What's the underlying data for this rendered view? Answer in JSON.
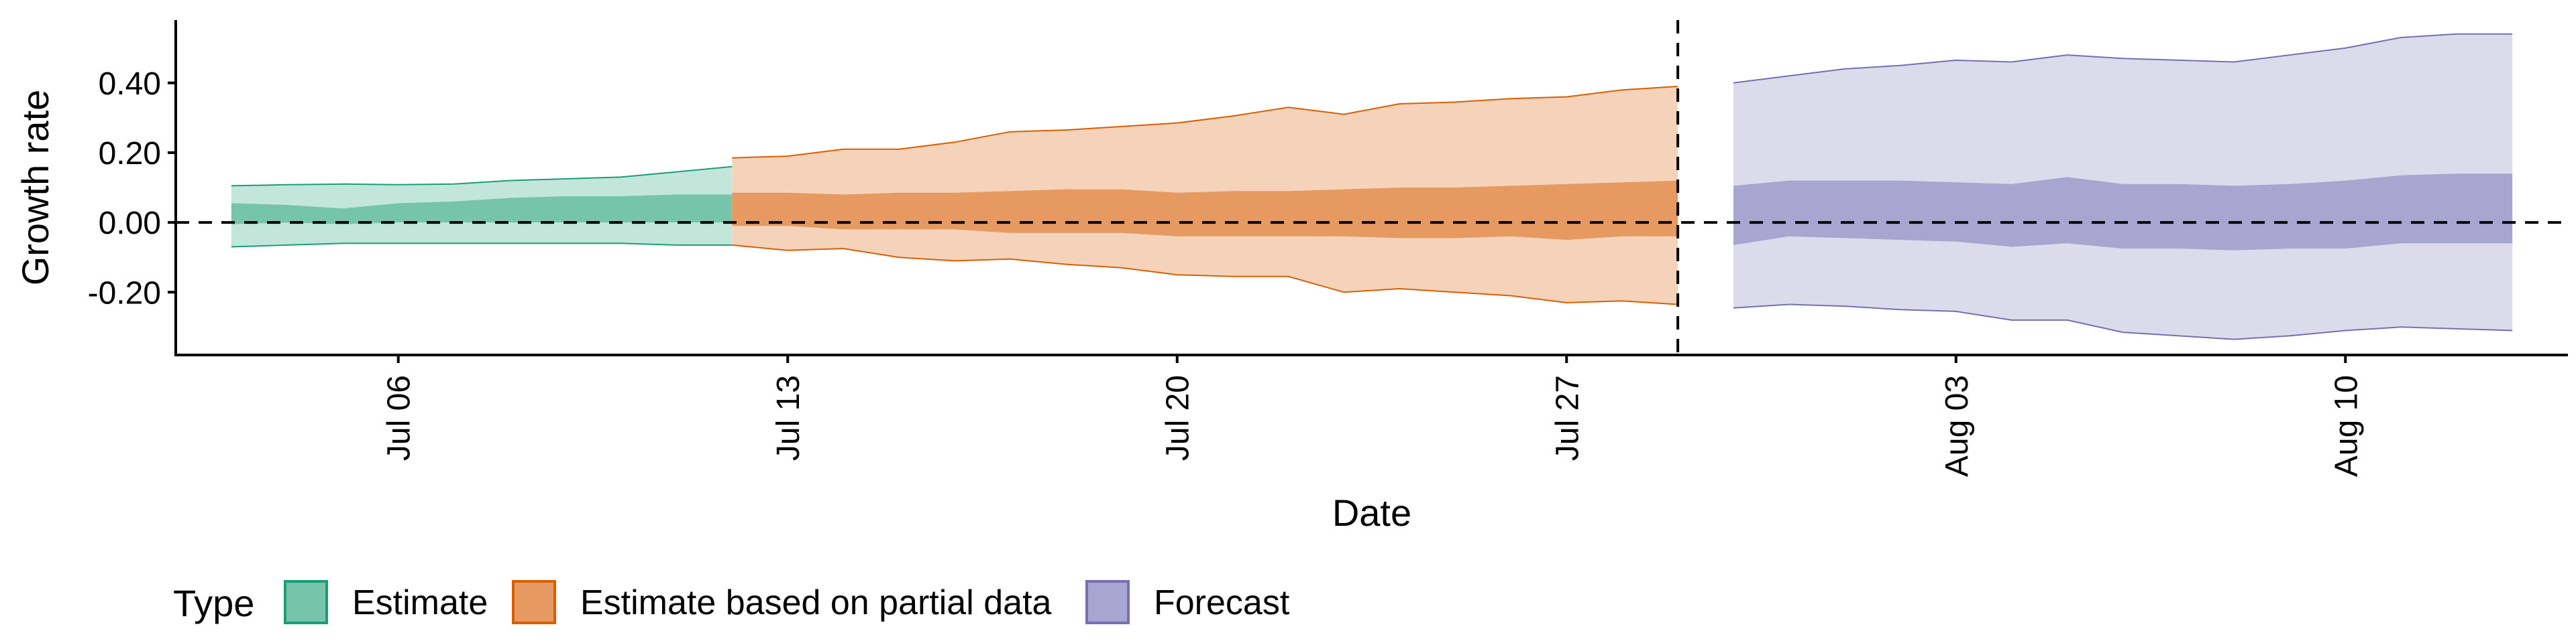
{
  "chart_data": {
    "type": "area",
    "xlabel": "Date",
    "ylabel": "Growth rate",
    "x_range": [
      "2020-07-02",
      "2020-08-14"
    ],
    "ylim": [
      -0.38,
      0.58
    ],
    "y_ticks": [
      {
        "value": -0.2,
        "label": "-0.20"
      },
      {
        "value": 0.0,
        "label": "0.00"
      },
      {
        "value": 0.2,
        "label": "0.20"
      },
      {
        "value": 0.4,
        "label": "0.40"
      }
    ],
    "x_ticks": [
      {
        "value": "2020-07-06",
        "label": "Jul 06"
      },
      {
        "value": "2020-07-13",
        "label": "Jul 13"
      },
      {
        "value": "2020-07-20",
        "label": "Jul 20"
      },
      {
        "value": "2020-07-27",
        "label": "Jul 27"
      },
      {
        "value": "2020-08-03",
        "label": "Aug 03"
      },
      {
        "value": "2020-08-10",
        "label": "Aug 10"
      }
    ],
    "hline_y": 0.0,
    "vline_x": "2020-07-29",
    "grid": false,
    "legend": {
      "title": "Type",
      "position": "bottom-left"
    },
    "series": [
      {
        "name": "Estimate",
        "color": "#1b9e77",
        "light_fill": "#c3e6da",
        "dark_fill": "#76c4a9",
        "x": [
          "2020-07-03",
          "2020-07-04",
          "2020-07-05",
          "2020-07-06",
          "2020-07-07",
          "2020-07-08",
          "2020-07-09",
          "2020-07-10",
          "2020-07-11",
          "2020-07-12"
        ],
        "lower90": [
          -0.07,
          -0.065,
          -0.06,
          -0.06,
          -0.06,
          -0.06,
          -0.06,
          -0.06,
          -0.065,
          -0.065
        ],
        "upper90": [
          0.105,
          0.108,
          0.11,
          0.108,
          0.11,
          0.12,
          0.125,
          0.13,
          0.145,
          0.16
        ],
        "lower50": [
          -0.005,
          0.0,
          -0.005,
          0.0,
          0.0,
          0.0,
          0.0,
          0.0,
          0.0,
          0.0
        ],
        "upper50": [
          0.055,
          0.05,
          0.04,
          0.055,
          0.06,
          0.07,
          0.075,
          0.075,
          0.08,
          0.08
        ]
      },
      {
        "name": "Estimate based on partial data",
        "color": "#d95f02",
        "light_fill": "#f5d3bb",
        "dark_fill": "#e69a62",
        "x": [
          "2020-07-12",
          "2020-07-13",
          "2020-07-14",
          "2020-07-15",
          "2020-07-16",
          "2020-07-17",
          "2020-07-18",
          "2020-07-19",
          "2020-07-20",
          "2020-07-21",
          "2020-07-22",
          "2020-07-23",
          "2020-07-24",
          "2020-07-25",
          "2020-07-26",
          "2020-07-27",
          "2020-07-28",
          "2020-07-29"
        ],
        "lower90": [
          -0.065,
          -0.08,
          -0.075,
          -0.1,
          -0.11,
          -0.105,
          -0.12,
          -0.13,
          -0.15,
          -0.155,
          -0.155,
          -0.2,
          -0.19,
          -0.2,
          -0.21,
          -0.23,
          -0.225,
          -0.235
        ],
        "upper90": [
          0.185,
          0.19,
          0.21,
          0.21,
          0.23,
          0.26,
          0.265,
          0.275,
          0.285,
          0.305,
          0.33,
          0.31,
          0.34,
          0.345,
          0.355,
          0.36,
          0.38,
          0.39
        ],
        "lower50": [
          -0.01,
          -0.01,
          -0.02,
          -0.02,
          -0.02,
          -0.03,
          -0.03,
          -0.03,
          -0.04,
          -0.04,
          -0.04,
          -0.04,
          -0.045,
          -0.045,
          -0.04,
          -0.05,
          -0.04,
          -0.04
        ],
        "upper50": [
          0.085,
          0.085,
          0.08,
          0.085,
          0.085,
          0.09,
          0.095,
          0.095,
          0.085,
          0.09,
          0.09,
          0.095,
          0.1,
          0.1,
          0.105,
          0.11,
          0.115,
          0.12
        ]
      },
      {
        "name": "Forecast",
        "color": "#7570b3",
        "light_fill": "#dcdbec",
        "dark_fill": "#a8a5d1",
        "x": [
          "2020-07-30",
          "2020-07-31",
          "2020-08-01",
          "2020-08-02",
          "2020-08-03",
          "2020-08-04",
          "2020-08-05",
          "2020-08-06",
          "2020-08-07",
          "2020-08-08",
          "2020-08-09",
          "2020-08-10",
          "2020-08-11",
          "2020-08-12",
          "2020-08-13"
        ],
        "lower90": [
          -0.245,
          -0.235,
          -0.24,
          -0.25,
          -0.255,
          -0.28,
          -0.28,
          -0.315,
          -0.325,
          -0.335,
          -0.325,
          -0.31,
          -0.3,
          -0.305,
          -0.31
        ],
        "upper90": [
          0.4,
          0.42,
          0.44,
          0.45,
          0.465,
          0.46,
          0.48,
          0.47,
          0.465,
          0.46,
          0.48,
          0.5,
          0.53,
          0.54,
          0.54
        ],
        "lower50": [
          -0.065,
          -0.04,
          -0.045,
          -0.05,
          -0.055,
          -0.07,
          -0.06,
          -0.075,
          -0.075,
          -0.08,
          -0.075,
          -0.075,
          -0.06,
          -0.06,
          -0.06
        ],
        "upper50": [
          0.105,
          0.12,
          0.12,
          0.12,
          0.115,
          0.11,
          0.13,
          0.11,
          0.11,
          0.105,
          0.11,
          0.12,
          0.135,
          0.14,
          0.14
        ]
      }
    ]
  }
}
